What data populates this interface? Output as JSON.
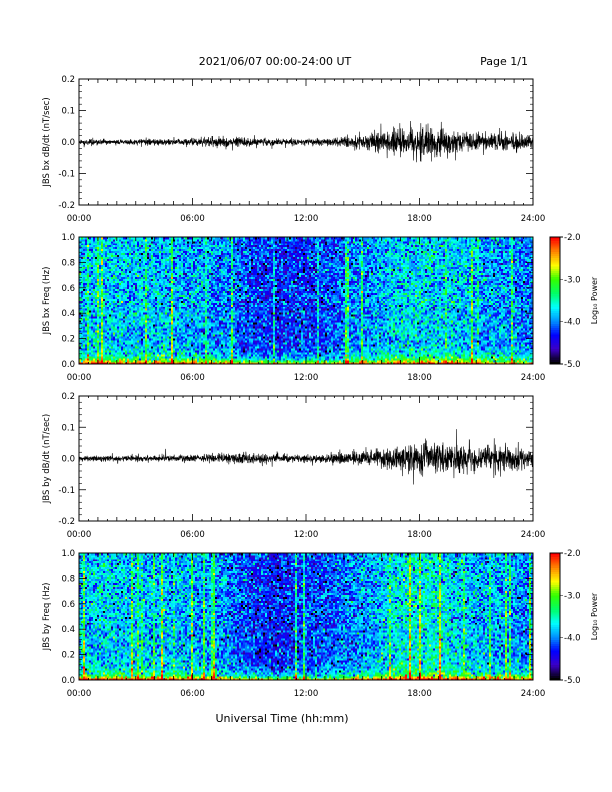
{
  "header": {
    "title": "2021/06/07  00:00-24:00 UT",
    "page": "Page 1/1"
  },
  "footer": {
    "xlabel": "Universal Time (hh:mm)"
  },
  "time_ticks": [
    "00:00",
    "06:00",
    "12:00",
    "18:00",
    "24:00"
  ],
  "colorbar": {
    "label": "Log₁₀ Power",
    "ticks": [
      "-2.0",
      "-3.0",
      "-4.0",
      "-5.0"
    ],
    "range": [
      -5.0,
      -2.0
    ],
    "colors": [
      "#000000",
      "#3b00c8",
      "#0000ff",
      "#0090ff",
      "#00ffff",
      "#00ff66",
      "#33ff00",
      "#ffff00",
      "#ff8800",
      "#ff0000"
    ]
  },
  "chart_data": [
    {
      "type": "line",
      "ylabel": "JBS bx dB/dt (nT/sec)",
      "xlim": [
        0,
        24
      ],
      "ylim": [
        -0.2,
        0.2
      ],
      "yticks": [
        "0.2",
        "0.1",
        "0.0",
        "-0.1",
        "-0.2"
      ],
      "color": "#000000",
      "envelope": {
        "x_hours": [
          0,
          3,
          6,
          7.5,
          9,
          10.5,
          12,
          13.5,
          14.5,
          15.5,
          16.5,
          17.5,
          18.5,
          19.5,
          20.5,
          21.5,
          22.5,
          23.5,
          24
        ],
        "amplitude": [
          0.008,
          0.009,
          0.012,
          0.018,
          0.015,
          0.012,
          0.01,
          0.014,
          0.022,
          0.03,
          0.04,
          0.05,
          0.055,
          0.04,
          0.035,
          0.03,
          0.035,
          0.03,
          0.02
        ]
      }
    },
    {
      "type": "heatmap",
      "ylabel": "JBS bx Freq (Hz)",
      "xlim": [
        0,
        24
      ],
      "ylim": [
        0.0,
        1.0
      ],
      "yticks": [
        "1.0",
        "0.8",
        "0.6",
        "0.4",
        "0.2",
        "0.0"
      ],
      "zlabel": "Log₁₀ Power",
      "zlim": [
        -5.0,
        -2.0
      ],
      "activity": {
        "x_hours": [
          0,
          3,
          6,
          7.5,
          9,
          10.5,
          12,
          13.5,
          14.5,
          15.5,
          16.5,
          17.5,
          18.5,
          19.5,
          20.5,
          21.5,
          22.5,
          23.5,
          24
        ],
        "level": [
          0.55,
          0.55,
          0.5,
          0.45,
          0.3,
          0.25,
          0.28,
          0.32,
          0.42,
          0.45,
          0.55,
          0.6,
          0.6,
          0.55,
          0.52,
          0.45,
          0.45,
          0.42,
          0.4
        ]
      }
    },
    {
      "type": "line",
      "ylabel": "JBS by dB/dt (nT/sec)",
      "xlim": [
        0,
        24
      ],
      "ylim": [
        -0.2,
        0.2
      ],
      "yticks": [
        "0.2",
        "0.1",
        "0.0",
        "-0.1",
        "-0.2"
      ],
      "color": "#000000",
      "envelope": {
        "x_hours": [
          0,
          3,
          6,
          7.5,
          9,
          10.5,
          12,
          13.5,
          14.5,
          15.5,
          16.5,
          17.5,
          18.5,
          19.5,
          20.5,
          21.5,
          22.5,
          23.5,
          24
        ],
        "amplitude": [
          0.01,
          0.01,
          0.012,
          0.016,
          0.02,
          0.013,
          0.012,
          0.02,
          0.02,
          0.03,
          0.04,
          0.05,
          0.055,
          0.05,
          0.05,
          0.045,
          0.05,
          0.045,
          0.03
        ]
      }
    },
    {
      "type": "heatmap",
      "ylabel": "JBS by Freq (Hz)",
      "xlim": [
        0,
        24
      ],
      "ylim": [
        0.0,
        1.0
      ],
      "yticks": [
        "1.0",
        "0.8",
        "0.6",
        "0.4",
        "0.2",
        "0.0"
      ],
      "zlabel": "Log₁₀ Power",
      "zlim": [
        -5.0,
        -2.0
      ],
      "activity": {
        "x_hours": [
          0,
          3,
          6,
          7.5,
          9,
          10.5,
          12,
          13.5,
          14.5,
          15.5,
          16.5,
          17.5,
          18.5,
          19.5,
          20.5,
          21.5,
          22.5,
          23.5,
          24
        ],
        "level": [
          0.55,
          0.55,
          0.5,
          0.45,
          0.3,
          0.22,
          0.3,
          0.35,
          0.42,
          0.48,
          0.6,
          0.65,
          0.68,
          0.62,
          0.55,
          0.5,
          0.48,
          0.45,
          0.42
        ]
      }
    }
  ]
}
